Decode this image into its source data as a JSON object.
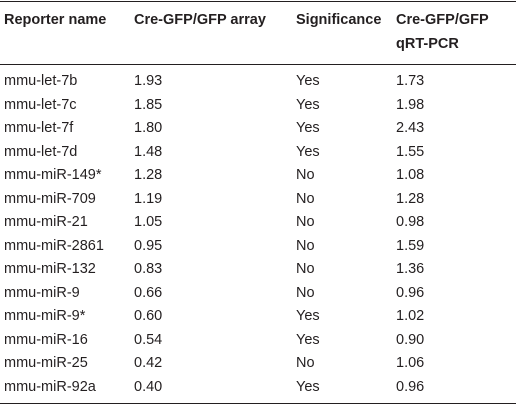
{
  "table": {
    "headers": [
      "Reporter name",
      "Cre-GFP/GFP array",
      "Significance",
      "Cre-GFP/GFP qRT-PCR"
    ],
    "header_line1": [
      "Reporter name",
      "Cre-GFP/GFP array",
      "Significance",
      "Cre-GFP/GFP"
    ],
    "header_line2": [
      "",
      "",
      "",
      "qRT-PCR"
    ],
    "rows": [
      [
        "mmu-let-7b",
        "1.93",
        "Yes",
        "1.73"
      ],
      [
        "mmu-let-7c",
        "1.85",
        "Yes",
        "1.98"
      ],
      [
        "mmu-let-7f",
        "1.80",
        "Yes",
        "2.43"
      ],
      [
        "mmu-let-7d",
        "1.48",
        "Yes",
        "1.55"
      ],
      [
        "mmu-miR-149*",
        "1.28",
        "No",
        "1.08"
      ],
      [
        "mmu-miR-709",
        "1.19",
        "No",
        "1.28"
      ],
      [
        "mmu-miR-21",
        "1.05",
        "No",
        "0.98"
      ],
      [
        "mmu-miR-2861",
        "0.95",
        "No",
        "1.59"
      ],
      [
        "mmu-miR-132",
        "0.83",
        "No",
        "1.36"
      ],
      [
        "mmu-miR-9",
        "0.66",
        "No",
        "0.96"
      ],
      [
        "mmu-miR-9*",
        "0.60",
        "Yes",
        "1.02"
      ],
      [
        "mmu-miR-16",
        "0.54",
        "Yes",
        "0.90"
      ],
      [
        "mmu-miR-25",
        "0.42",
        "No",
        "1.06"
      ],
      [
        "mmu-miR-92a",
        "0.40",
        "Yes",
        "0.96"
      ]
    ]
  }
}
